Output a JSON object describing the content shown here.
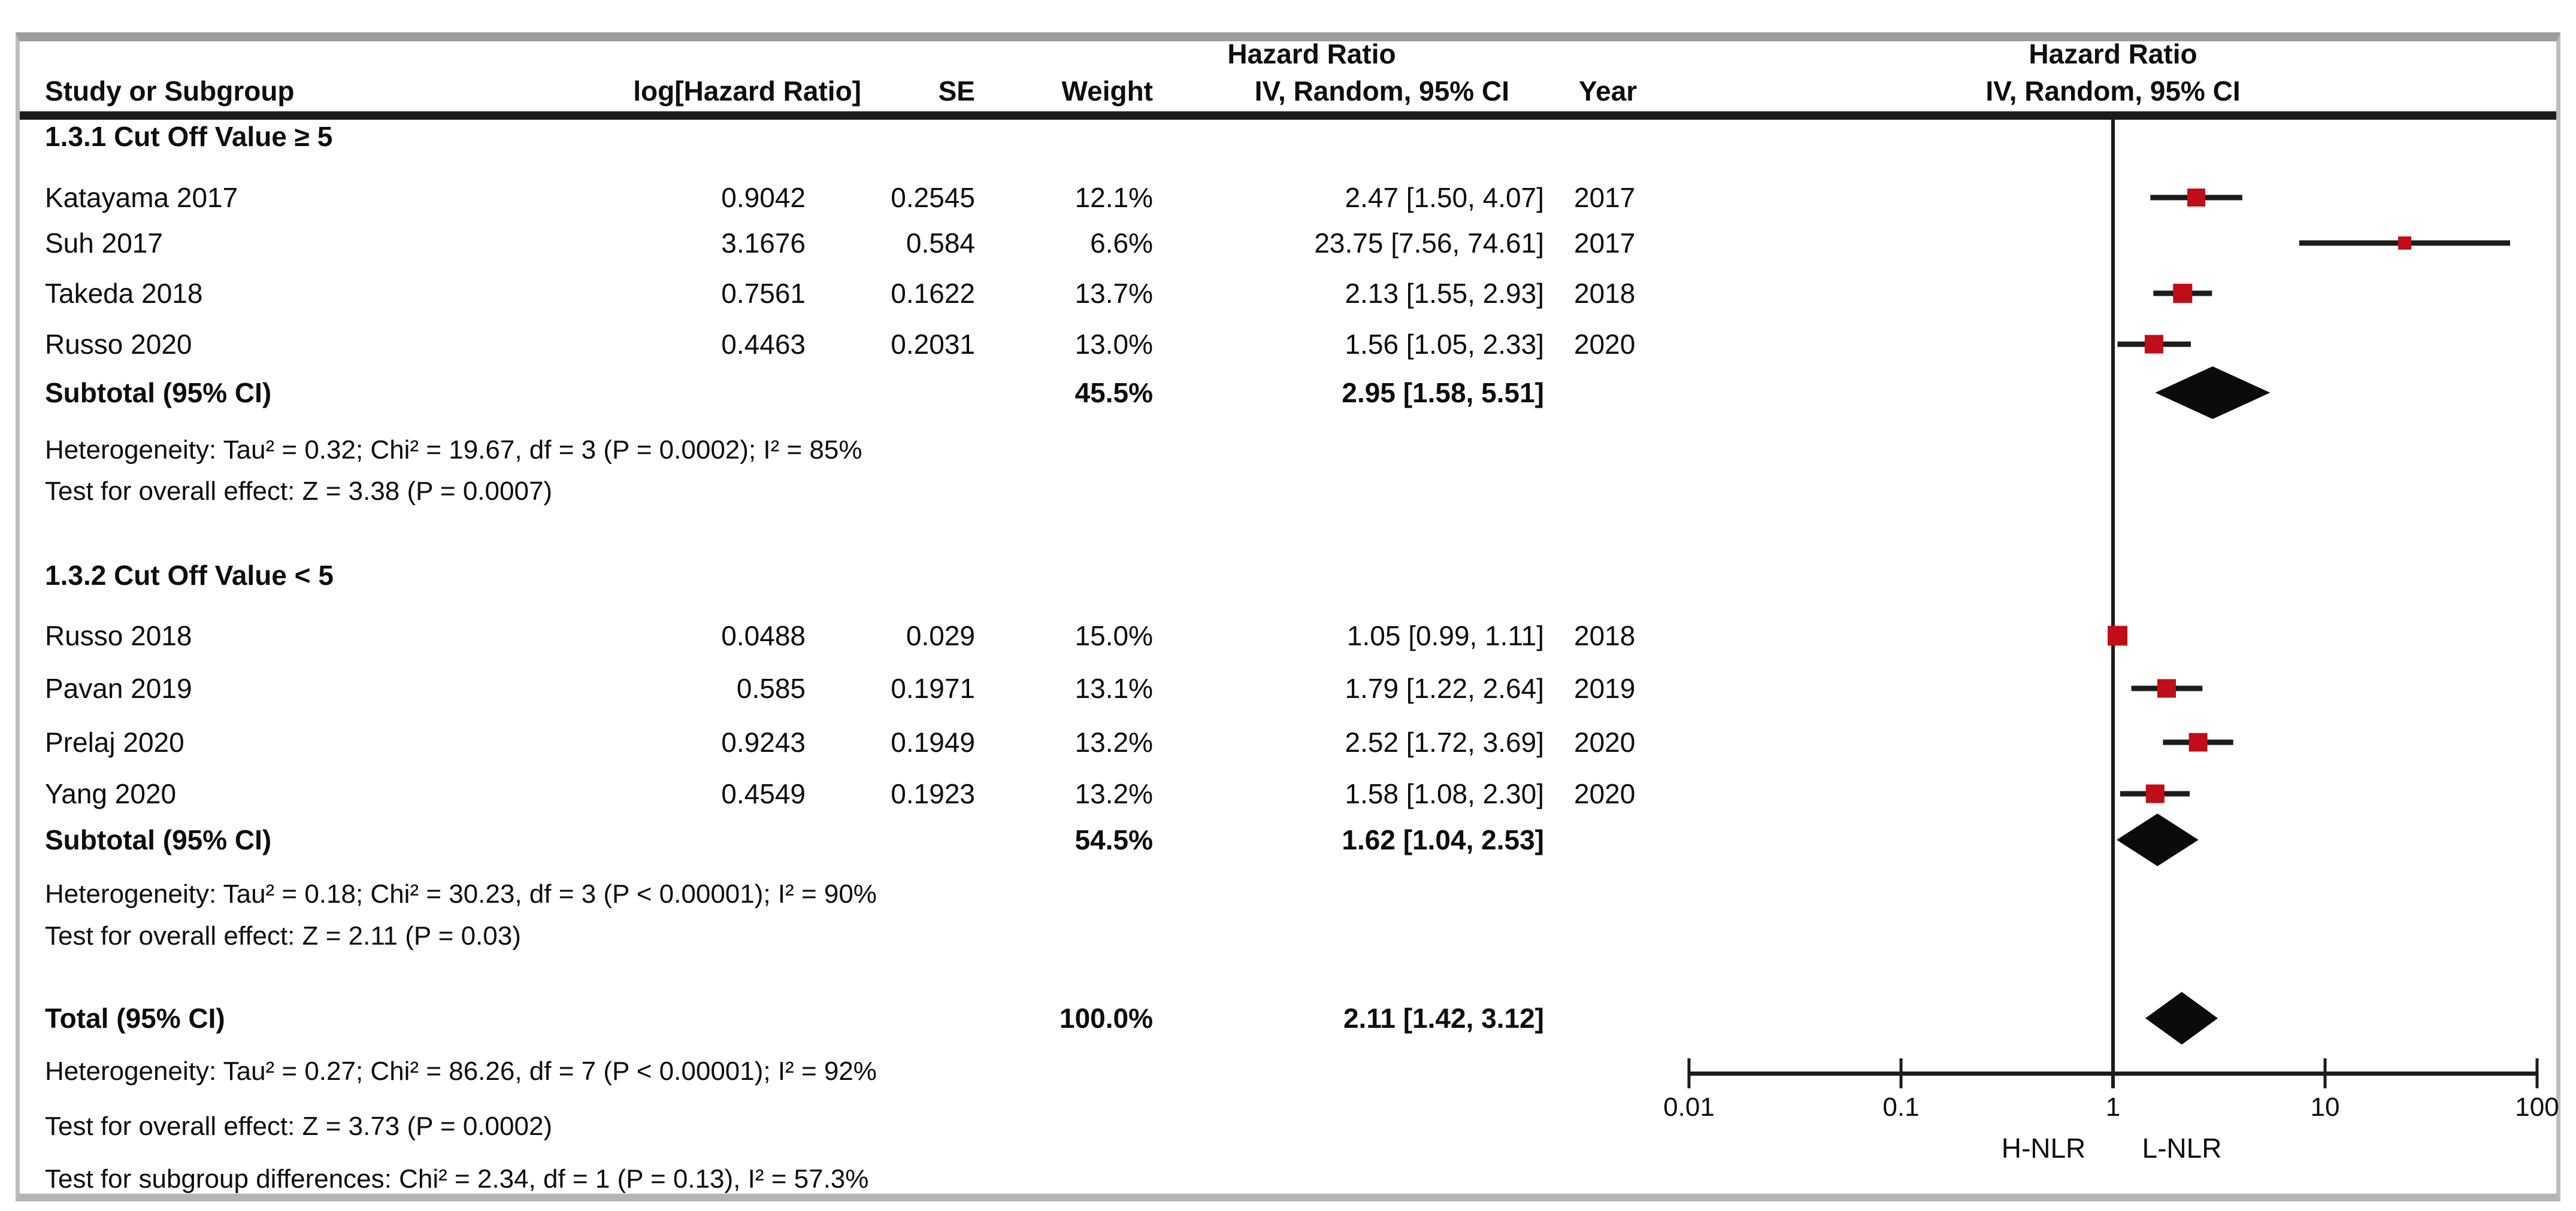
{
  "columns": {
    "study": "Study or Subgroup",
    "log_hr": "log[Hazard Ratio]",
    "se": "SE",
    "weight": "Weight",
    "ci": "IV, Random, 95% CI",
    "year": "Year",
    "effect": "Hazard Ratio"
  },
  "plot": {
    "header_line1": "Hazard Ratio",
    "header_line2": "IV, Random, 95% CI",
    "ticks": [
      {
        "label": "0.01",
        "value": 0.01
      },
      {
        "label": "0.1",
        "value": 0.1
      },
      {
        "label": "1",
        "value": 1
      },
      {
        "label": "10",
        "value": 10
      },
      {
        "label": "100",
        "value": 100
      }
    ],
    "left_label": "H-NLR",
    "right_label": "L-NLR",
    "marker_color": "#C00D18",
    "line_color": "#1c1c1c"
  },
  "groups": [
    {
      "title": "1.3.1 Cut Off Value ≥ 5",
      "studies": [
        {
          "name": "Katayama 2017",
          "log_hr": "0.9042",
          "se": "0.2545",
          "weight": "12.1%",
          "weight_pct": 12.1,
          "ci_text": "2.47 [1.50, 4.07]",
          "year": "2017",
          "hr": 2.47,
          "ci_low": 1.5,
          "ci_high": 4.07
        },
        {
          "name": "Suh 2017",
          "log_hr": "3.1676",
          "se": "0.584",
          "weight": "6.6%",
          "weight_pct": 6.6,
          "ci_text": "23.75 [7.56, 74.61]",
          "year": "2017",
          "hr": 23.75,
          "ci_low": 7.56,
          "ci_high": 74.61
        },
        {
          "name": "Takeda 2018",
          "log_hr": "0.7561",
          "se": "0.1622",
          "weight": "13.7%",
          "weight_pct": 13.7,
          "ci_text": "2.13 [1.55, 2.93]",
          "year": "2018",
          "hr": 2.13,
          "ci_low": 1.55,
          "ci_high": 2.93
        },
        {
          "name": "Russo 2020",
          "log_hr": "0.4463",
          "se": "0.2031",
          "weight": "13.0%",
          "weight_pct": 13.0,
          "ci_text": "1.56 [1.05, 2.33]",
          "year": "2020",
          "hr": 1.56,
          "ci_low": 1.05,
          "ci_high": 2.33
        }
      ],
      "subtotal": {
        "label": "Subtotal (95% CI)",
        "weight": "45.5%",
        "ci_text": "2.95 [1.58, 5.51]",
        "hr": 2.95,
        "ci_low": 1.58,
        "ci_high": 5.51
      },
      "heterogeneity": "Heterogeneity: Tau² = 0.32; Chi² = 19.67, df = 3 (P = 0.0002); I² = 85%",
      "overall_effect": "Test for overall effect: Z = 3.38 (P = 0.0007)"
    },
    {
      "title": "1.3.2 Cut Off Value < 5",
      "studies": [
        {
          "name": "Russo 2018",
          "log_hr": "0.0488",
          "se": "0.029",
          "weight": "15.0%",
          "weight_pct": 15.0,
          "ci_text": "1.05 [0.99, 1.11]",
          "year": "2018",
          "hr": 1.05,
          "ci_low": 0.99,
          "ci_high": 1.11
        },
        {
          "name": "Pavan 2019",
          "log_hr": "0.585",
          "se": "0.1971",
          "weight": "13.1%",
          "weight_pct": 13.1,
          "ci_text": "1.79 [1.22, 2.64]",
          "year": "2019",
          "hr": 1.79,
          "ci_low": 1.22,
          "ci_high": 2.64
        },
        {
          "name": "Prelaj 2020",
          "log_hr": "0.9243",
          "se": "0.1949",
          "weight": "13.2%",
          "weight_pct": 13.2,
          "ci_text": "2.52 [1.72, 3.69]",
          "year": "2020",
          "hr": 2.52,
          "ci_low": 1.72,
          "ci_high": 3.69
        },
        {
          "name": "Yang 2020",
          "log_hr": "0.4549",
          "se": "0.1923",
          "weight": "13.2%",
          "weight_pct": 13.2,
          "ci_text": "1.58 [1.08, 2.30]",
          "year": "2020",
          "hr": 1.58,
          "ci_low": 1.08,
          "ci_high": 2.3
        }
      ],
      "subtotal": {
        "label": "Subtotal (95% CI)",
        "weight": "54.5%",
        "ci_text": "1.62 [1.04, 2.53]",
        "hr": 1.62,
        "ci_low": 1.04,
        "ci_high": 2.53
      },
      "heterogeneity": "Heterogeneity: Tau² = 0.18; Chi² = 30.23, df = 3 (P < 0.00001); I² = 90%",
      "overall_effect": "Test for overall effect: Z = 2.11 (P = 0.03)"
    }
  ],
  "total": {
    "label": "Total (95% CI)",
    "weight": "100.0%",
    "ci_text": "2.11 [1.42, 3.12]",
    "hr": 2.11,
    "ci_low": 1.42,
    "ci_high": 3.12
  },
  "footer": {
    "heterogeneity": "Heterogeneity: Tau² = 0.27; Chi² = 86.26, df = 7 (P < 0.00001); I² = 92%",
    "overall_effect": "Test for overall effect: Z = 3.73 (P = 0.0002)",
    "subgroup_differences": "Test for subgroup differences: Chi² = 2.34, df = 1 (P = 0.13), I² = 57.3%"
  },
  "chart_data": {
    "type": "scatter",
    "variant": "forest-plot",
    "title": "Hazard Ratio, IV, Random, 95% CI",
    "x_scale": "log10",
    "x_ticks": [
      0.01,
      0.1,
      1,
      10,
      100
    ],
    "xlim": [
      0.01,
      100
    ],
    "x_axis_labels": {
      "left_of_1": "H-NLR",
      "right_of_1": "L-NLR"
    },
    "reference_line": 1,
    "series": [
      {
        "group": "1.3.1 Cut Off Value ≥ 5",
        "points": [
          {
            "study": "Katayama 2017",
            "hr": 2.47,
            "ci": [
              1.5,
              4.07
            ],
            "weight_pct": 12.1
          },
          {
            "study": "Suh 2017",
            "hr": 23.75,
            "ci": [
              7.56,
              74.61
            ],
            "weight_pct": 6.6
          },
          {
            "study": "Takeda 2018",
            "hr": 2.13,
            "ci": [
              1.55,
              2.93
            ],
            "weight_pct": 13.7
          },
          {
            "study": "Russo 2020",
            "hr": 1.56,
            "ci": [
              1.05,
              2.33
            ],
            "weight_pct": 13.0
          }
        ],
        "subtotal": {
          "hr": 2.95,
          "ci": [
            1.58,
            5.51
          ],
          "weight_pct": 45.5
        }
      },
      {
        "group": "1.3.2 Cut Off Value < 5",
        "points": [
          {
            "study": "Russo 2018",
            "hr": 1.05,
            "ci": [
              0.99,
              1.11
            ],
            "weight_pct": 15.0
          },
          {
            "study": "Pavan 2019",
            "hr": 1.79,
            "ci": [
              1.22,
              2.64
            ],
            "weight_pct": 13.1
          },
          {
            "study": "Prelaj 2020",
            "hr": 2.52,
            "ci": [
              1.72,
              3.69
            ],
            "weight_pct": 13.2
          },
          {
            "study": "Yang 2020",
            "hr": 1.58,
            "ci": [
              1.08,
              2.3
            ],
            "weight_pct": 13.2
          }
        ],
        "subtotal": {
          "hr": 1.62,
          "ci": [
            1.04,
            2.53
          ],
          "weight_pct": 54.5
        }
      }
    ],
    "total": {
      "hr": 2.11,
      "ci": [
        1.42,
        3.12
      ],
      "weight_pct": 100.0
    }
  }
}
